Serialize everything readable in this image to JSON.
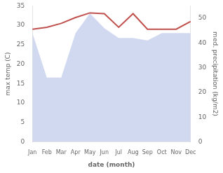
{
  "chart_data": {
    "type": "line",
    "categories": [
      "Jan",
      "Feb",
      "Mar",
      "Apr",
      "May",
      "Jun",
      "Jul",
      "Aug",
      "Sep",
      "Oct",
      "Nov",
      "Dec"
    ],
    "series": [
      {
        "type": "area",
        "color": "#b8c4e8",
        "axis": "y2",
        "values": [
          44.0,
          26.0,
          26.0,
          44.0,
          52.0,
          46.0,
          42.0,
          42.0,
          41.0,
          44.0,
          44.0,
          44.0
        ]
      },
      {
        "type": "line",
        "color": "#c0504d",
        "values": [
          29.0,
          29.5,
          30.5,
          32.0,
          33.2,
          33.0,
          29.5,
          33.0,
          29.0,
          29.0,
          29.0,
          31.0
        ]
      }
    ],
    "xlabel": "date (month)",
    "ylabel": "max temp (C)",
    "y2label": "med. precipitation (kg/m2)",
    "ylim": [
      0,
      35
    ],
    "yticks": [
      0,
      5,
      10,
      15,
      20,
      25,
      30,
      35
    ],
    "y2lim": [
      0,
      55
    ],
    "y2ticks": [
      0,
      10,
      20,
      30,
      40,
      50
    ],
    "grid": false
  }
}
